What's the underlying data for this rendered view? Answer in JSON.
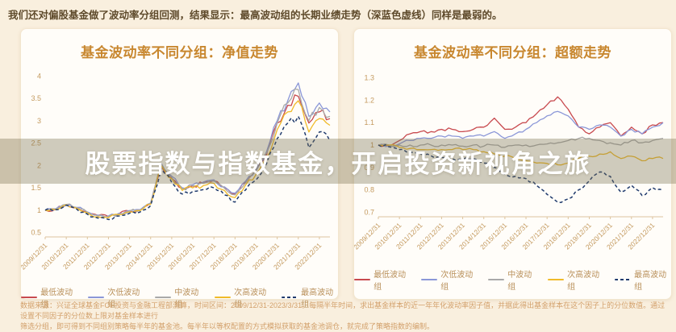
{
  "header": {
    "text": "我们还对偏股基金做了波动率分组回测，结果显示：最高波动组的长期业绩走势（深蓝色虚线）同样是最弱的。"
  },
  "banner": {
    "text": "股票指数与指数基金，开启投资新视角之旅"
  },
  "footer": {
    "line1": "数据来源：兴证全球基金FOF投资与金融工程部测算，时间区间：2009/12/31-2023/3/31。每隔半年时间，求出基金样本的近一年年化波动率因子值，并据此得出基金样本在这个因子上的分位数值。通过设置不同因子的分位数上限对基金样本进行",
    "line2": "筛选分组，即可得到不同组别策略每半年的基金池。每半年以等权配置的方式模拟获取的基金池调仓，就完成了策略指数的编制。"
  },
  "theme": {
    "page_bg": "#f9efde",
    "card_bg": "#fffdf9",
    "title_color": "#c8872f",
    "axis_label_color": "#c49a5f",
    "legend_text_color": "#b9905a",
    "banner_text_color": "#ffffff",
    "header_text_color": "#5e4a2b",
    "footer_text_color": "#d2a06b"
  },
  "chart_data": [
    {
      "type": "line",
      "title": "基金波动率不同分组：净值走势",
      "xlabel": "",
      "ylabel": "",
      "ylim": [
        0.4,
        4.1
      ],
      "y_ticks": [
        "4",
        "3.5",
        "3",
        "2.5",
        "2",
        "1.5",
        "1",
        "0.5"
      ],
      "x_ticks": [
        "2009/12/31",
        "2010/12/31",
        "2011/12/31",
        "2012/12/31",
        "2013/12/31",
        "2014/12/31",
        "2015/12/31",
        "2016/12/31",
        "2017/12/31",
        "2018/12/31",
        "2019/12/31",
        "2020/12/31",
        "2021/12/31",
        "2022/12/31"
      ],
      "x_step": "half-year from 2009/12/31 to 2023/3/31",
      "grid": false,
      "legend_position": "bottom",
      "series": [
        {
          "name": "最低波动组",
          "color": "#c84a4f",
          "dash": false,
          "values": [
            1.0,
            1.02,
            1.12,
            1.05,
            0.95,
            0.88,
            0.86,
            0.92,
            0.98,
            1.0,
            1.15,
            2.0,
            1.72,
            1.48,
            1.54,
            1.6,
            1.66,
            1.5,
            1.36,
            1.62,
            1.88,
            2.25,
            2.95,
            3.35,
            3.55,
            2.95,
            3.2,
            3.05
          ]
        },
        {
          "name": "次低波动组",
          "color": "#8b97d8",
          "dash": false,
          "values": [
            1.0,
            1.03,
            1.13,
            1.06,
            0.96,
            0.89,
            0.87,
            0.93,
            0.99,
            1.01,
            1.16,
            2.05,
            1.76,
            1.5,
            1.57,
            1.63,
            1.68,
            1.52,
            1.38,
            1.65,
            1.92,
            2.32,
            3.0,
            3.45,
            3.85,
            3.1,
            3.4,
            3.2
          ]
        },
        {
          "name": "中波动组",
          "color": "#a9a9a9",
          "dash": false,
          "values": [
            1.0,
            1.02,
            1.13,
            1.05,
            0.95,
            0.87,
            0.85,
            0.91,
            0.98,
            1.0,
            1.15,
            2.03,
            1.74,
            1.48,
            1.55,
            1.6,
            1.65,
            1.49,
            1.34,
            1.61,
            1.88,
            2.28,
            2.95,
            3.4,
            3.7,
            3.0,
            3.3,
            3.1
          ]
        },
        {
          "name": "次高波动组",
          "color": "#f0bb2a",
          "dash": false,
          "values": [
            1.0,
            1.01,
            1.12,
            1.04,
            0.94,
            0.85,
            0.83,
            0.9,
            0.96,
            0.99,
            1.13,
            2.0,
            1.7,
            1.44,
            1.5,
            1.55,
            1.6,
            1.44,
            1.28,
            1.56,
            1.8,
            2.18,
            2.8,
            3.2,
            3.45,
            2.75,
            3.05,
            2.9
          ]
        },
        {
          "name": "最高波动组",
          "color": "#1f3a6d",
          "dash": true,
          "values": [
            1.0,
            1.01,
            1.11,
            1.02,
            0.91,
            0.82,
            0.79,
            0.87,
            0.93,
            0.96,
            1.1,
            1.93,
            1.62,
            1.36,
            1.42,
            1.46,
            1.5,
            1.34,
            1.18,
            1.45,
            1.68,
            2.05,
            2.6,
            2.95,
            3.1,
            2.4,
            2.75,
            2.55
          ]
        }
      ]
    },
    {
      "type": "line",
      "title": "基金波动率不同分组：超额走势",
      "xlabel": "",
      "ylabel": "",
      "ylim": [
        0.68,
        1.32
      ],
      "y_ticks": [
        "1.3",
        "1.2",
        "1.1",
        "1",
        "0.9",
        "0.8",
        "0.7"
      ],
      "x_ticks": [
        "2009/12/31",
        "2010/12/31",
        "2011/12/31",
        "2012/12/31",
        "2013/12/31",
        "2014/12/31",
        "2015/12/31",
        "2016/12/31",
        "2017/12/31",
        "2018/12/31",
        "2019/12/31",
        "2020/12/31",
        "2021/12/31",
        "2022/12/31"
      ],
      "x_step": "half-year from 2009/12/31 to 2023/3/31",
      "grid": false,
      "legend_position": "bottom",
      "series": [
        {
          "name": "最低波动组",
          "color": "#c84a4f",
          "dash": false,
          "values": [
            1.0,
            0.995,
            1.02,
            1.05,
            1.06,
            1.06,
            1.07,
            1.07,
            1.06,
            1.07,
            1.08,
            1.12,
            1.07,
            1.08,
            1.1,
            1.14,
            1.18,
            1.215,
            1.16,
            1.08,
            1.05,
            1.08,
            1.1,
            1.04,
            1.08,
            1.05,
            1.09,
            1.1
          ]
        },
        {
          "name": "次低波动组",
          "color": "#8b97d8",
          "dash": false,
          "values": [
            1.0,
            0.995,
            1.005,
            1.02,
            1.03,
            1.03,
            1.04,
            1.04,
            1.03,
            1.04,
            1.04,
            1.06,
            1.03,
            1.05,
            1.07,
            1.1,
            1.13,
            1.15,
            1.13,
            1.08,
            1.07,
            1.09,
            1.08,
            1.04,
            1.07,
            1.05,
            1.08,
            1.1
          ]
        },
        {
          "name": "中波动组",
          "color": "#a9a9a9",
          "dash": false,
          "values": [
            1.0,
            1.0,
            1.0,
            1.0,
            1.0,
            1.0,
            1.0,
            1.0,
            0.995,
            1.0,
            0.995,
            1.0,
            0.99,
            1.0,
            1.0,
            1.0,
            1.005,
            1.01,
            1.02,
            1.03,
            1.03,
            1.02,
            1.01,
            1.0,
            1.02,
            1.01,
            1.02,
            1.03
          ]
        },
        {
          "name": "次高波动组",
          "color": "#f0bb2a",
          "dash": false,
          "values": [
            1.0,
            1.0,
            0.99,
            0.985,
            0.98,
            0.98,
            0.98,
            0.98,
            0.98,
            0.98,
            0.97,
            0.96,
            0.95,
            0.94,
            0.93,
            0.92,
            0.918,
            0.912,
            0.92,
            0.94,
            0.95,
            0.96,
            0.97,
            0.94,
            0.95,
            0.93,
            0.94,
            0.94
          ]
        },
        {
          "name": "最高波动组",
          "color": "#1f3a6d",
          "dash": true,
          "values": [
            1.0,
            0.992,
            0.98,
            0.97,
            0.96,
            0.952,
            0.945,
            0.94,
            0.935,
            0.94,
            0.92,
            0.9,
            0.87,
            0.86,
            0.85,
            0.82,
            0.78,
            0.745,
            0.76,
            0.8,
            0.84,
            0.88,
            0.86,
            0.79,
            0.82,
            0.775,
            0.81,
            0.8
          ]
        }
      ]
    }
  ]
}
